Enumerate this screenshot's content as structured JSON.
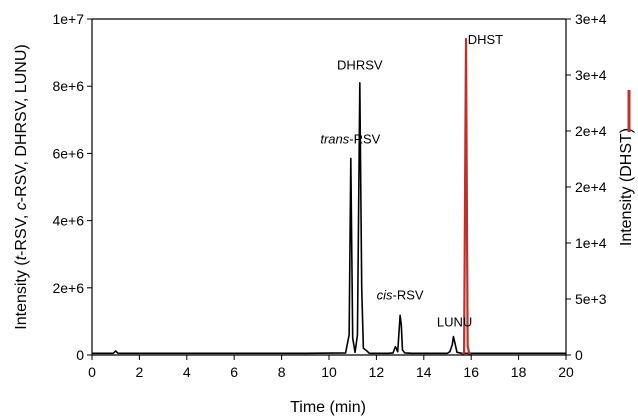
{
  "chart_data": {
    "type": "line",
    "xlabel": "Time (min)",
    "ylabel_left_parts": [
      "Intensity (",
      "t",
      "-RSV, ",
      "c",
      "-RSV, DHRSV, LUNU)"
    ],
    "ylabel_right": "Intensity (DHST)",
    "xlim": [
      0,
      20
    ],
    "ylim_left": [
      0,
      10000000
    ],
    "ylim_right": [
      0,
      30000
    ],
    "x_ticks": [
      "0",
      "2",
      "4",
      "6",
      "8",
      "10",
      "12",
      "14",
      "16",
      "18",
      "20"
    ],
    "y_left_ticks": [
      "0",
      "2e+6",
      "4e+6",
      "6e+6",
      "8e+6",
      "1e+7"
    ],
    "y_right_ticks": [
      "0",
      "5e+3",
      "1e+4",
      "2e+4",
      "2e+4",
      "3e+4",
      "3e+4"
    ],
    "series": [
      {
        "axis": "left",
        "color": "#000000",
        "x": [
          0,
          0.9,
          1.0,
          1.1,
          5,
          9.0,
          10.7,
          10.85,
          10.92,
          11.0,
          11.1,
          11.2,
          11.3,
          11.38,
          11.45,
          11.6,
          11.7,
          11.9,
          12.5,
          12.7,
          12.8,
          12.9,
          13.0,
          13.05,
          13.1,
          13.2,
          13.5,
          15.0,
          15.1,
          15.2,
          15.25,
          15.3,
          15.4,
          15.6,
          16.0,
          20
        ],
        "y": [
          50000,
          50000,
          120000,
          50000,
          50000,
          50000,
          60000,
          600000,
          5850000,
          500000,
          80000,
          600000,
          8100000,
          2000000,
          200000,
          120000,
          50000,
          50000,
          50000,
          60000,
          250000,
          100000,
          1180000,
          900000,
          150000,
          60000,
          50000,
          50000,
          100000,
          300000,
          550000,
          400000,
          80000,
          50000,
          50000,
          50000
        ]
      },
      {
        "axis": "right",
        "color": "#c0302a",
        "x": [
          15.6,
          15.7,
          15.78,
          15.85,
          15.92,
          16.0
        ],
        "y": [
          0,
          200,
          28200,
          800,
          100,
          0
        ]
      }
    ],
    "annotations": [
      {
        "text_parts": [
          "trans",
          "-RSV"
        ],
        "x": 10.9,
        "y": 6300000,
        "axis": "left"
      },
      {
        "text_parts": [
          "",
          "DHRSV"
        ],
        "x": 11.3,
        "y": 8500000,
        "axis": "left"
      },
      {
        "text_parts": [
          "cis",
          "-RSV"
        ],
        "x": 13.0,
        "y": 1650000,
        "axis": "left"
      },
      {
        "text_parts": [
          "",
          "LUNU"
        ],
        "x": 15.3,
        "y": 850000,
        "axis": "left"
      },
      {
        "text_parts": [
          "",
          "DHST"
        ],
        "x": 16.6,
        "y": 9250000,
        "axis": "left"
      }
    ]
  }
}
